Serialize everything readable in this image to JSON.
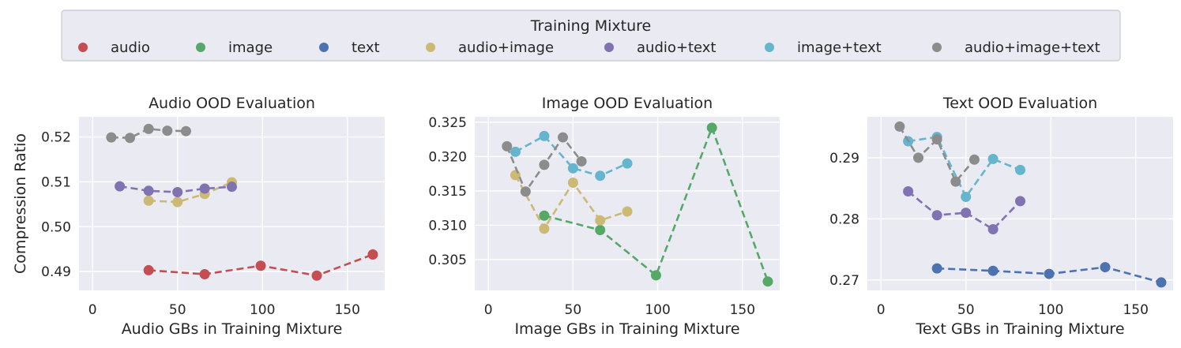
{
  "legend": {
    "title": "Training Mixture",
    "placement": "top-center",
    "entries": [
      {
        "name": "audio",
        "color": "#c44e52"
      },
      {
        "name": "image",
        "color": "#55a868"
      },
      {
        "name": "text",
        "color": "#4c72b0"
      },
      {
        "name": "audio+image",
        "color": "#ccb974"
      },
      {
        "name": "audio+text",
        "color": "#8172b2"
      },
      {
        "name": "image+text",
        "color": "#64b5cd"
      },
      {
        "name": "audio+image+text",
        "color": "#8c8c8c"
      }
    ]
  },
  "chart_data": [
    {
      "type": "line",
      "title": "Audio OOD Evaluation",
      "xlabel": "Audio GBs in Training Mixture",
      "ylabel": "Compression Ratio",
      "xlim": [
        -8,
        172
      ],
      "ylim": [
        0.4858,
        0.5245
      ],
      "xticks": [
        0,
        50,
        100,
        150
      ],
      "xtick_labels": [
        "0",
        "50",
        "100",
        "150"
      ],
      "yticks": [
        0.49,
        0.5,
        0.51,
        0.52
      ],
      "ytick_labels": [
        "0.49",
        "0.50",
        "0.51",
        "0.52"
      ],
      "grid": true,
      "series": [
        {
          "name": "audio",
          "color": "#c44e52",
          "x": [
            33,
            66,
            99,
            132,
            165
          ],
          "y": [
            0.4903,
            0.4894,
            0.4913,
            0.4891,
            0.4938
          ]
        },
        {
          "name": "audio+image",
          "color": "#ccb974",
          "x": [
            33,
            50,
            66,
            82
          ],
          "y": [
            0.5058,
            0.5055,
            0.5073,
            0.5099
          ]
        },
        {
          "name": "audio+text",
          "color": "#8172b2",
          "x": [
            16,
            33,
            50,
            66,
            82
          ],
          "y": [
            0.509,
            0.508,
            0.5077,
            0.5085,
            0.5089
          ]
        },
        {
          "name": "audio+image+text",
          "color": "#8c8c8c",
          "x": [
            11,
            22,
            33,
            44,
            55
          ],
          "y": [
            0.5199,
            0.5198,
            0.5218,
            0.5214,
            0.5213
          ]
        }
      ]
    },
    {
      "type": "line",
      "title": "Image OOD Evaluation",
      "xlabel": "Image GBs in Training Mixture",
      "ylabel": "",
      "xlim": [
        -8,
        172
      ],
      "ylim": [
        0.3005,
        0.3258
      ],
      "xticks": [
        0,
        50,
        100,
        150
      ],
      "xtick_labels": [
        "0",
        "50",
        "100",
        "150"
      ],
      "yticks": [
        0.305,
        0.31,
        0.315,
        0.32,
        0.325
      ],
      "ytick_labels": [
        "0.305",
        "0.310",
        "0.315",
        "0.320",
        "0.325"
      ],
      "grid": true,
      "series": [
        {
          "name": "image",
          "color": "#55a868",
          "x": [
            33,
            66,
            99,
            132,
            165
          ],
          "y": [
            0.3114,
            0.3093,
            0.3027,
            0.3242,
            0.3018
          ]
        },
        {
          "name": "audio+image",
          "color": "#ccb974",
          "x": [
            16,
            33,
            50,
            66,
            82
          ],
          "y": [
            0.3173,
            0.3095,
            0.3162,
            0.3107,
            0.312
          ]
        },
        {
          "name": "image+text",
          "color": "#64b5cd",
          "x": [
            16,
            33,
            50,
            66,
            82
          ],
          "y": [
            0.3207,
            0.323,
            0.3183,
            0.3172,
            0.319
          ]
        },
        {
          "name": "audio+image+text",
          "color": "#8c8c8c",
          "x": [
            11,
            22,
            33,
            44,
            55
          ],
          "y": [
            0.3215,
            0.3149,
            0.3188,
            0.3228,
            0.3193
          ]
        }
      ]
    },
    {
      "type": "line",
      "title": "Text OOD Evaluation",
      "xlabel": "Text GBs in Training Mixture",
      "ylabel": "",
      "xlim": [
        -8,
        172
      ],
      "ylim": [
        0.2683,
        0.2967
      ],
      "xticks": [
        0,
        50,
        100,
        150
      ],
      "xtick_labels": [
        "0",
        "50",
        "100",
        "150"
      ],
      "yticks": [
        0.27,
        0.28,
        0.29
      ],
      "ytick_labels": [
        "0.27",
        "0.28",
        "0.29"
      ],
      "grid": true,
      "series": [
        {
          "name": "text",
          "color": "#4c72b0",
          "x": [
            33,
            66,
            99,
            132,
            165
          ],
          "y": [
            0.2719,
            0.2715,
            0.271,
            0.2721,
            0.2696
          ]
        },
        {
          "name": "audio+text",
          "color": "#8172b2",
          "x": [
            16,
            33,
            50,
            66,
            82
          ],
          "y": [
            0.2845,
            0.2806,
            0.281,
            0.2783,
            0.2829
          ]
        },
        {
          "name": "image+text",
          "color": "#64b5cd",
          "x": [
            16,
            33,
            50,
            66,
            82
          ],
          "y": [
            0.2927,
            0.2934,
            0.2836,
            0.2898,
            0.288
          ]
        },
        {
          "name": "audio+image+text",
          "color": "#8c8c8c",
          "x": [
            11,
            22,
            33,
            44,
            55
          ],
          "y": [
            0.2951,
            0.29,
            0.293,
            0.2861,
            0.2897
          ]
        }
      ]
    }
  ]
}
